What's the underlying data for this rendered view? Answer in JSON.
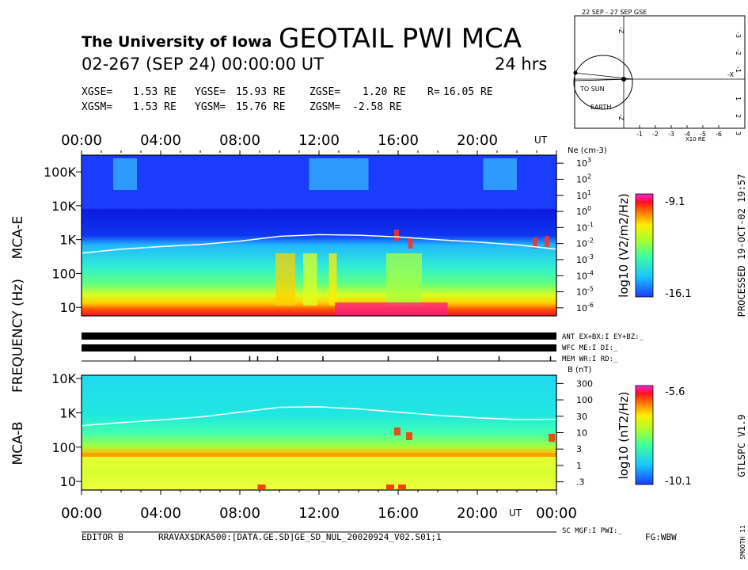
{
  "header": {
    "institution": "The University of Iowa",
    "title": "GEOTAIL PWI MCA",
    "date_line": "02-267 (SEP 24) 00:00:00 UT",
    "duration": "24 hrs",
    "gse": {
      "x_label": "XGSE=",
      "x_value": "1.53 RE",
      "y_label": "YGSE=",
      "y_value": "15.93 RE",
      "z_label": "ZGSE=",
      "z_value": "1.20 RE",
      "r_label": "R=",
      "r_value": "16.05 RE"
    },
    "gsm": {
      "x_label": "XGSM=",
      "x_value": "1.53 RE",
      "y_label": "YGSM=",
      "y_value": "15.76 RE",
      "z_label": "ZGSM=",
      "z_value": "-2.58 RE"
    }
  },
  "orbit_plot": {
    "title": "22 SEP - 27 SEP GSE",
    "to_sun_label": "TO SUN",
    "earth_label": "EARTH",
    "x_axis_label": "-X",
    "z_axis_label": "-Z",
    "y_axis_label": "-Y",
    "x_ticks": [
      "-1",
      "-2",
      "-3",
      "-4",
      "-5",
      "-6"
    ],
    "y_ticks": [
      "-3",
      "-2",
      "-1",
      "1",
      "2",
      "3"
    ],
    "unit_label": "X10 RE"
  },
  "time_axis": {
    "top_ticks": [
      "00:00",
      "04:00",
      "08:00",
      "12:00",
      "16:00",
      "20:00"
    ],
    "bottom_ticks": [
      "00:00",
      "04:00",
      "08:00",
      "12:00",
      "16:00",
      "20:00",
      "00:00"
    ],
    "unit": "UT"
  },
  "panels": {
    "mca_e": {
      "name": "MCA-E",
      "freq_ticks": [
        "100K",
        "10K",
        "1K",
        "100",
        "10"
      ],
      "right_axis_title": "Ne (cm-3)",
      "right_ticks": [
        "10^3",
        "10^2",
        "10^1",
        "10^0",
        "10^-1",
        "10^-2",
        "10^-3",
        "10^-4",
        "10^-5",
        "10^-6"
      ],
      "colorbar_max": "-9.1",
      "colorbar_min": "-16.1",
      "colorbar_label": "log10 (V2/m2/Hz)"
    },
    "mca_b": {
      "name": "MCA-B",
      "freq_ticks": [
        "10K",
        "1K",
        "100",
        "10"
      ],
      "right_axis_title": "B (nT)",
      "right_ticks": [
        "300",
        "100",
        "30",
        "10",
        "3",
        "1",
        ".3"
      ],
      "colorbar_max": "-5.6",
      "colorbar_min": "-10.1",
      "colorbar_label": "log10 (nT2/Hz)"
    },
    "frequency_label": "FREQUENCY (Hz)"
  },
  "status_lines": {
    "ant": "ANT EX+BX:I EY+BZ:_",
    "wfc": "WFC ME:I   DI:_",
    "mem": "MEM WR:I   RD:_",
    "sc": "SC MGF:I   PWI:_"
  },
  "footer": {
    "editor": "EDITOR B",
    "path": "RRAVAX$DKA500:[DATA.GE.SD]GE_SD_NUL_20020924_V02.S01;1",
    "fg": "FG:WBW"
  },
  "side_labels": {
    "processed": "PROCESSED 19-OCT-02 19:57",
    "version": "GTLSPC V1.9",
    "smooth": "SMOOTH 11"
  },
  "chart_data": [
    {
      "type": "heatmap",
      "title": "MCA-E",
      "xlabel": "UT",
      "ylabel": "FREQUENCY (Hz)",
      "x_range_hours": [
        0,
        24
      ],
      "y_range_hz": [
        5.6,
        311000
      ],
      "y_scale": "log",
      "colorbar_range": [
        -16.1,
        -9.1
      ],
      "overlay_line": {
        "name": "Ne",
        "x_hours": [
          0,
          2,
          4,
          6,
          8,
          10,
          12,
          14,
          16,
          18,
          20,
          22,
          24
        ],
        "y_hz": [
          400,
          520,
          620,
          720,
          900,
          1250,
          1400,
          1350,
          1200,
          1000,
          850,
          700,
          520
        ]
      }
    },
    {
      "type": "heatmap",
      "title": "MCA-B",
      "xlabel": "UT",
      "ylabel": "FREQUENCY (Hz)",
      "x_range_hours": [
        0,
        24
      ],
      "y_range_hz": [
        5.6,
        12500
      ],
      "y_scale": "log",
      "colorbar_range": [
        -10.1,
        -5.6
      ],
      "overlay_line": {
        "name": "B",
        "x_hours": [
          0,
          2,
          4,
          6,
          8,
          10,
          12,
          14,
          16,
          18,
          20,
          22,
          24
        ],
        "y_hz": [
          420,
          520,
          620,
          760,
          1050,
          1450,
          1500,
          1300,
          1050,
          850,
          720,
          640,
          650
        ]
      }
    }
  ]
}
